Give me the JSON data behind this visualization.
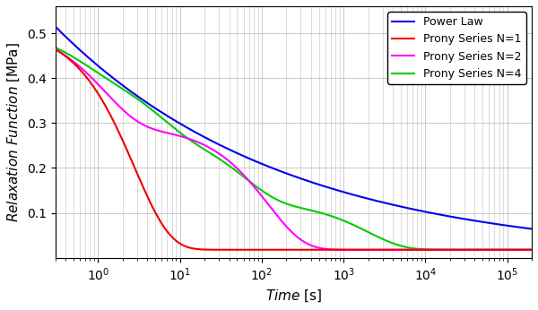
{
  "title": "",
  "xlabel": "$\\mathit{Time}$ [s]",
  "ylabel": "$\\mathit{Relaxation\\ Function}$ [MPa]",
  "xlim": [
    0.3,
    200000.0
  ],
  "ylim": [
    0,
    0.56
  ],
  "yticks": [
    0.1,
    0.2,
    0.3,
    0.4,
    0.5
  ],
  "power_law_color": "#0000EE",
  "prony1_color": "#EE0000",
  "prony2_color": "#FF00FF",
  "prony4_color": "#00CC00",
  "legend_labels": [
    "Power Law",
    "Prony Series N=1",
    "Prony Series N=2",
    "Prony Series N=4"
  ],
  "power_law_E0": 0.515,
  "power_law_alpha": 0.155,
  "power_law_t0": 0.3,
  "prony1_E_inf": 0.018,
  "prony1_E1": 0.497,
  "prony1_tau1": 2.8,
  "prony2_E_inf": 0.018,
  "prony2_E": [
    0.22,
    0.275
  ],
  "prony2_tau": [
    1.2,
    120.0
  ],
  "prony4_E_inf": 0.018,
  "prony4_E": [
    0.09,
    0.14,
    0.16,
    0.107
  ],
  "prony4_tau": [
    0.55,
    5.0,
    60.0,
    2000.0
  ],
  "background_color": "#ffffff",
  "grid_color": "#c0c0c0",
  "linewidth": 1.5,
  "legend_fontsize": 9,
  "axis_fontsize": 11,
  "tick_fontsize": 10
}
